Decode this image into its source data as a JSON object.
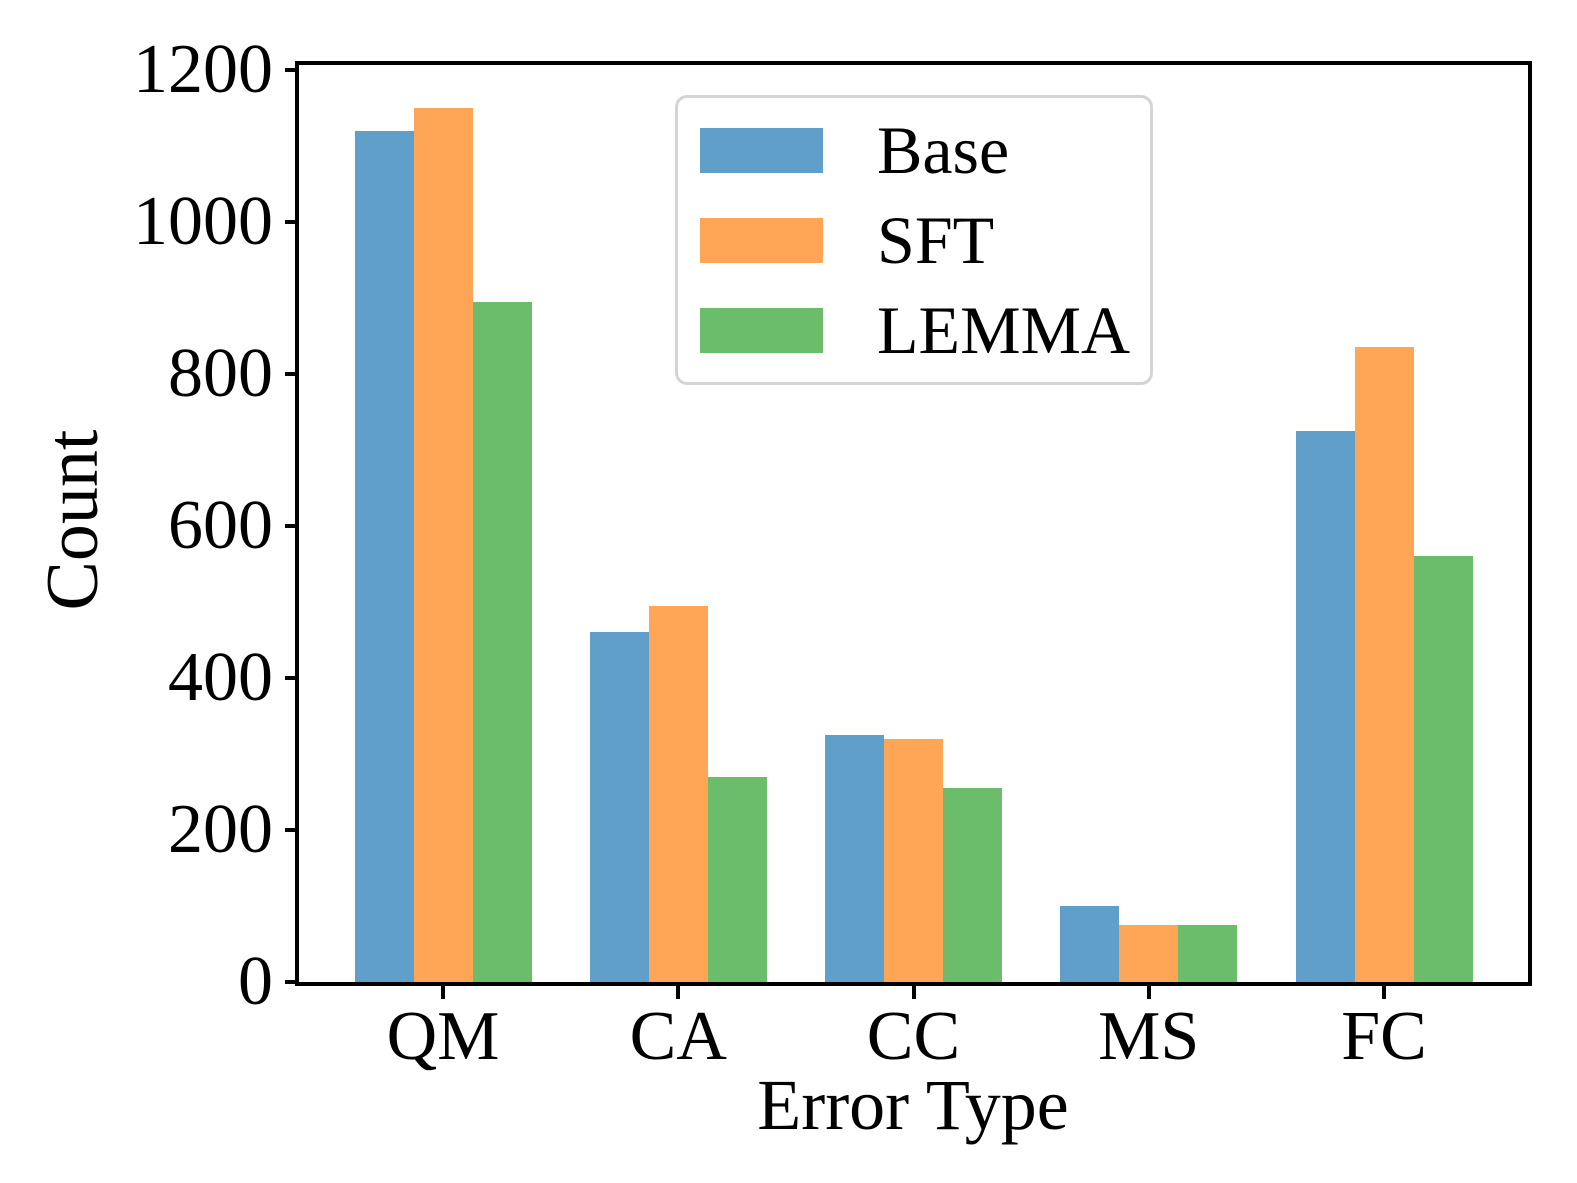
{
  "chart_data": {
    "type": "bar",
    "title": "",
    "xlabel": "Error Type",
    "ylabel": "Count",
    "categories": [
      "QM",
      "CA",
      "CC",
      "MS",
      "FC"
    ],
    "series": [
      {
        "name": "Base",
        "color": "#619fcb",
        "values": [
          1120,
          460,
          325,
          100,
          725
        ]
      },
      {
        "name": "SFT",
        "color": "#ffa556",
        "values": [
          1150,
          495,
          320,
          75,
          835
        ]
      },
      {
        "name": "LEMMA",
        "color": "#6bbc6b",
        "values": [
          895,
          270,
          255,
          75,
          560
        ]
      }
    ],
    "ylim": [
      0,
      1200
    ],
    "y_ticks": [
      0,
      200,
      400,
      600,
      800,
      1000,
      1200
    ],
    "grid": false,
    "legend_position": "upper center",
    "spine_color": "#000000",
    "legend_border_color": "#d4d4d4"
  }
}
